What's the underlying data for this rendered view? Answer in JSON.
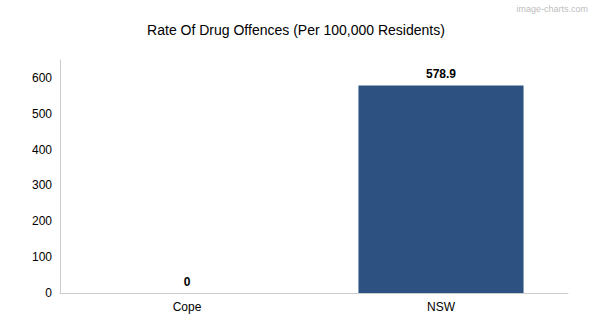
{
  "chart_data": {
    "type": "bar",
    "title": "Rate Of Drug Offences (Per 100,000 Residents)",
    "categories": [
      "Cope",
      "NSW"
    ],
    "values": [
      0,
      578.9
    ],
    "color": "#2d5282",
    "ylim": [
      0,
      650
    ],
    "yticks": [
      0,
      100,
      200,
      300,
      400,
      500,
      600
    ],
    "grid": false,
    "data_labels": true,
    "annotations": [
      "image-charts.com"
    ]
  }
}
